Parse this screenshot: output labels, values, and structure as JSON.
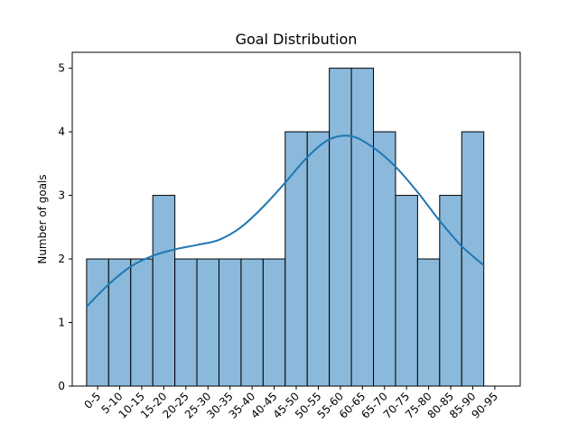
{
  "chart_data": {
    "type": "bar",
    "title": "Goal Distribution",
    "xlabel": "",
    "ylabel": "Number of goals",
    "categories": [
      "0-5",
      "5-10",
      "10-15",
      "15-20",
      "20-25",
      "25-30",
      "30-35",
      "35-40",
      "40-45",
      "45-50",
      "50-55",
      "55-60",
      "60-65",
      "65-70",
      "70-75",
      "75-80",
      "80-85",
      "85-90"
    ],
    "x_tick_labels": [
      "0-5",
      "5-10",
      "10-15",
      "15-20",
      "20-25",
      "25-30",
      "30-35",
      "35-40",
      "40-45",
      "45-50",
      "50-55",
      "55-60",
      "60-65",
      "65-70",
      "70-75",
      "75-80",
      "80-85",
      "85-90",
      "90-95"
    ],
    "values": [
      2,
      2,
      2,
      3,
      2,
      2,
      2,
      2,
      2,
      4,
      4,
      5,
      5,
      4,
      3,
      2,
      3,
      4
    ],
    "kde": {
      "x": [
        0,
        5,
        10,
        15,
        20,
        25,
        30,
        35,
        40,
        45,
        50,
        55,
        60,
        65,
        70,
        75,
        80,
        85,
        90
      ],
      "y": [
        1.25,
        1.6,
        1.88,
        2.05,
        2.15,
        2.22,
        2.3,
        2.5,
        2.82,
        3.2,
        3.6,
        3.88,
        3.93,
        3.75,
        3.45,
        3.05,
        2.6,
        2.2,
        1.9
      ]
    },
    "ylim": [
      0,
      5.25
    ],
    "y_ticks": [
      0,
      1,
      2,
      3,
      4,
      5
    ],
    "grid": false,
    "colors": {
      "bar_fill": "#8ab9db",
      "bar_edge": "#000000",
      "kde_line": "#1f77b4"
    }
  }
}
